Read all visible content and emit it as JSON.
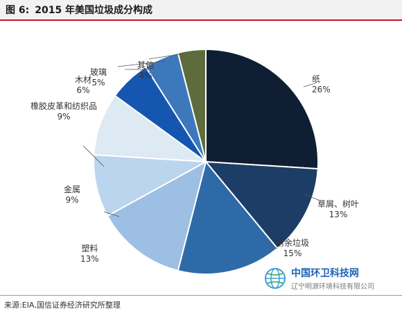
{
  "header": {
    "figure_label": "图 6:",
    "title": "2015 年美国垃圾成分构成"
  },
  "footer": {
    "source": "来源:EIA,国信证券经济研究所整理"
  },
  "watermark": {
    "brand": "中国环卫科技网",
    "subtitle": "辽宁明源环境科技有限公司"
  },
  "chart_data": {
    "type": "pie",
    "title": "2015 年美国垃圾成分构成",
    "start_angle_deg": 0,
    "direction": "clockwise",
    "slices": [
      {
        "label": "纸",
        "value": 26,
        "pct_label": "26%",
        "color": "#0f1e33"
      },
      {
        "label": "草屑、树叶",
        "value": 13,
        "pct_label": "13%",
        "color": "#1c3d66"
      },
      {
        "label": "厨余垃圾",
        "value": 15,
        "pct_label": "15%",
        "color": "#2f6aa8"
      },
      {
        "label": "塑料",
        "value": 13,
        "pct_label": "13%",
        "color": "#9cbfe3"
      },
      {
        "label": "金属",
        "value": 9,
        "pct_label": "9%",
        "color": "#bcd5ee"
      },
      {
        "label": "橡胶皮革和纺织品",
        "value": 9,
        "pct_label": "9%",
        "color": "#dde9f3"
      },
      {
        "label": "木材",
        "value": 6,
        "pct_label": "6%",
        "color": "#1557b0"
      },
      {
        "label": "玻璃",
        "value": 5,
        "pct_label": "5%",
        "color": "#3d78bd"
      },
      {
        "label": "其他",
        "value": 4,
        "pct_label": "4%",
        "color": "#5e6b3c"
      }
    ]
  }
}
